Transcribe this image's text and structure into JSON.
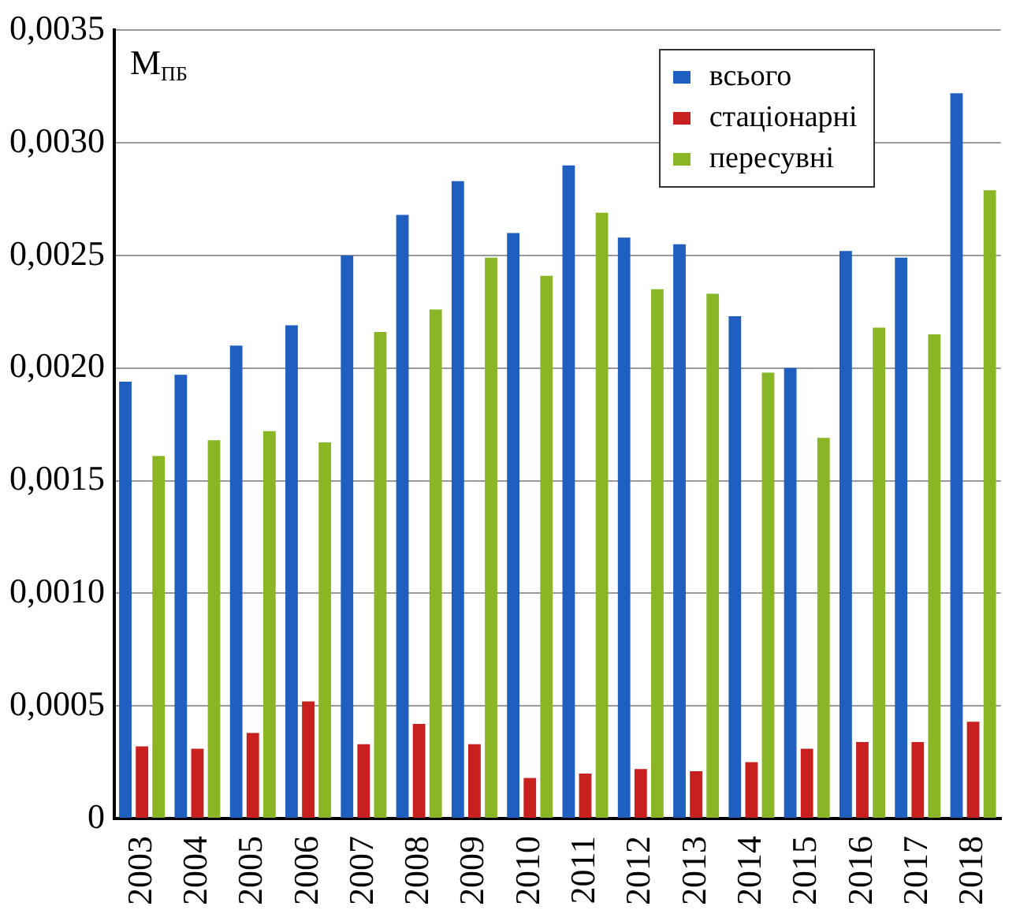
{
  "chart_data": {
    "type": "bar",
    "ylabel": "M$_{ПБ}$",
    "categories": [
      "2003",
      "2004",
      "2005",
      "2006",
      "2007",
      "2008",
      "2009",
      "2010",
      "2011",
      "2012",
      "2013",
      "2014",
      "2015",
      "2016",
      "2017",
      "2018"
    ],
    "series": [
      {
        "name": "всього",
        "color": "#1f5fbf",
        "values": [
          0.00194,
          0.00197,
          0.0021,
          0.00219,
          0.0025,
          0.00268,
          0.00283,
          0.0026,
          0.0029,
          0.00258,
          0.00255,
          0.00223,
          0.002,
          0.00252,
          0.00249,
          0.00322
        ]
      },
      {
        "name": "стаціонарні",
        "color": "#c8201e",
        "values": [
          0.00032,
          0.00031,
          0.00038,
          0.00052,
          0.00033,
          0.00042,
          0.00033,
          0.00018,
          0.0002,
          0.00022,
          0.00021,
          0.00025,
          0.00031,
          0.00034,
          0.00034,
          0.00043
        ]
      },
      {
        "name": "пересувні",
        "color": "#8ab626",
        "values": [
          0.00161,
          0.00168,
          0.00172,
          0.00167,
          0.00216,
          0.00226,
          0.00249,
          0.00241,
          0.00269,
          0.00235,
          0.00233,
          0.00198,
          0.00169,
          0.00218,
          0.00215,
          0.00279
        ]
      }
    ],
    "ylim": [
      0,
      0.0035
    ],
    "yticks": [
      0,
      {
        "value": 0.0005,
        "label": "0,0005"
      },
      {
        "value": 0.001,
        "label": "0,0010"
      },
      {
        "value": 0.0015,
        "label": "0,0015"
      },
      {
        "value": 0.002,
        "label": "0,0020"
      },
      {
        "value": 0.0025,
        "label": "0,0025"
      },
      {
        "value": 0.003,
        "label": "0,0030"
      },
      {
        "value": 0.0035,
        "label": "0,0035"
      }
    ],
    "grid": "y",
    "legend": "top right"
  }
}
